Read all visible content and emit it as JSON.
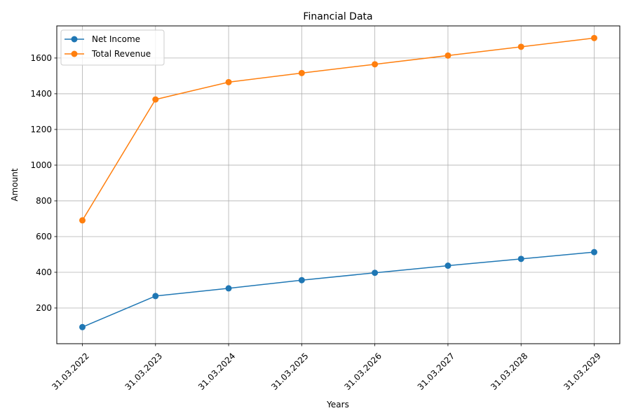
{
  "chart_data": {
    "type": "line",
    "title": "Financial Data",
    "xlabel": "Years",
    "ylabel": "Amount",
    "categories": [
      "31.03.2022",
      "31.03.2023",
      "31.03.2024",
      "31.03.2025",
      "31.03.2026",
      "31.03.2027",
      "31.03.2028",
      "31.03.2029"
    ],
    "series": [
      {
        "name": "Net Income",
        "color": "#1f77b4",
        "values": [
          93,
          267,
          310,
          356,
          397,
          437,
          475,
          513
        ]
      },
      {
        "name": "Total Revenue",
        "color": "#ff7f0e",
        "values": [
          691,
          1368,
          1465,
          1516,
          1565,
          1614,
          1663,
          1712
        ]
      }
    ],
    "ylim": [
      0,
      1780
    ],
    "yticks": [
      200,
      400,
      600,
      800,
      1000,
      1200,
      1400,
      1600
    ],
    "grid": true,
    "legend_position": "upper left"
  }
}
